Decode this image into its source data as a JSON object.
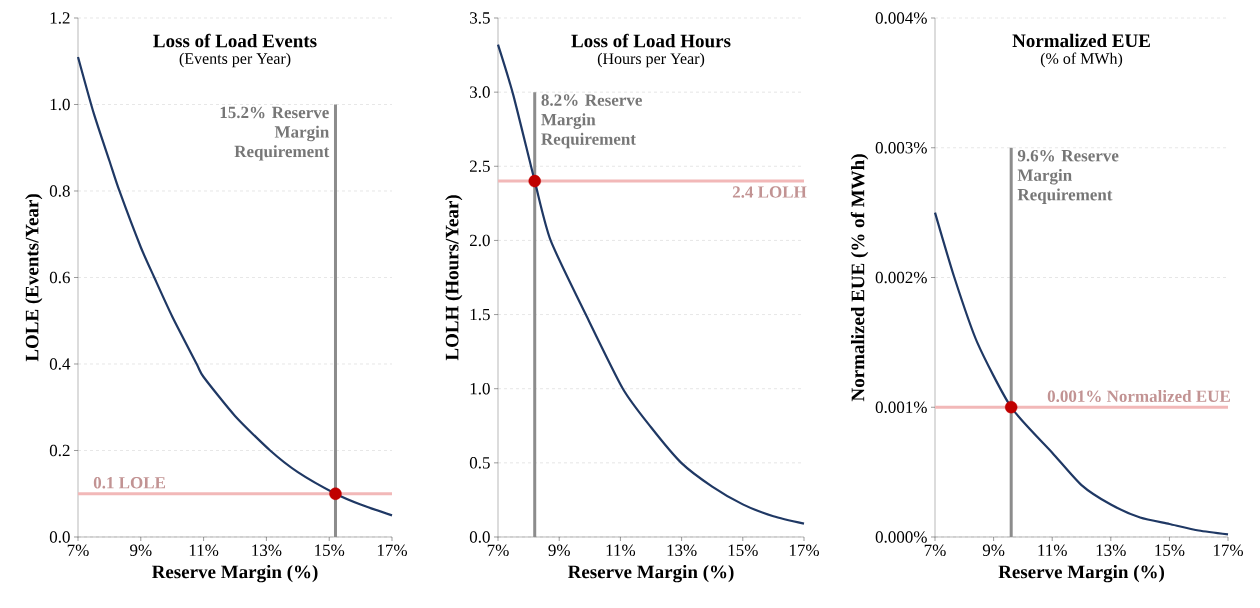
{
  "chart_data": [
    {
      "type": "line",
      "title": "Loss of Load Events",
      "subtitle": "(Events per Year)",
      "xlabel": "Reserve Margin (%)",
      "ylabel": "LOLE (Events/Year)",
      "xlim": [
        7,
        17
      ],
      "xticks": [
        {
          "value": 7,
          "label": "7%"
        },
        {
          "value": 9,
          "label": "9%"
        },
        {
          "value": 11,
          "label": "11%"
        },
        {
          "value": 13,
          "label": "13%"
        },
        {
          "value": 15,
          "label": "15%"
        },
        {
          "value": 17,
          "label": "17%"
        }
      ],
      "ylim": [
        0,
        1.2
      ],
      "yticks": [
        {
          "value": 0,
          "label": "0.0"
        },
        {
          "value": 0.2,
          "label": "0.2"
        },
        {
          "value": 0.4,
          "label": "0.4"
        },
        {
          "value": 0.6,
          "label": "0.6"
        },
        {
          "value": 0.8,
          "label": "0.8"
        },
        {
          "value": 1.0,
          "label": "1.0"
        },
        {
          "value": 1.2,
          "label": "1.2"
        }
      ],
      "grid": "y",
      "series": [
        {
          "color": "#1f3864",
          "x": [
            7,
            7.5,
            8,
            8.32,
            9,
            9.43,
            10,
            10.78,
            11,
            12,
            13.12,
            14,
            15.2,
            16,
            17
          ],
          "values": [
            1.11,
            0.98,
            0.87,
            0.8,
            0.67,
            0.6,
            0.51,
            0.4,
            0.37,
            0.28,
            0.2,
            0.15,
            0.1,
            0.075,
            0.05
          ]
        },
        {
          "type": "scatter",
          "color": "#c00000",
          "x": [
            15.2
          ],
          "values": [
            0.1
          ]
        }
      ],
      "ref_lines": [
        {
          "axis": "x",
          "value": 15.2,
          "label": "15.2% Reserve Margin Requirement",
          "color": "#8c8c8c"
        },
        {
          "axis": "y",
          "value": 0.1,
          "label": "0.1 LOLE",
          "color": "#f2b8b8"
        }
      ]
    },
    {
      "type": "line",
      "title": "Loss of Load Hours",
      "subtitle": "(Hours per Year)",
      "xlabel": "Reserve Margin (%)",
      "ylabel": "LOLH (Hours/Year)",
      "xlim": [
        7,
        17
      ],
      "xticks": [
        {
          "value": 7,
          "label": "7%"
        },
        {
          "value": 9,
          "label": "9%"
        },
        {
          "value": 11,
          "label": "11%"
        },
        {
          "value": 13,
          "label": "13%"
        },
        {
          "value": 15,
          "label": "15%"
        },
        {
          "value": 17,
          "label": "17%"
        }
      ],
      "ylim": [
        0,
        3.5
      ],
      "yticks": [
        {
          "value": 0,
          "label": "0.0"
        },
        {
          "value": 0.5,
          "label": "0.5"
        },
        {
          "value": 1.0,
          "label": "1.0"
        },
        {
          "value": 1.5,
          "label": "1.5"
        },
        {
          "value": 2.0,
          "label": "2.0"
        },
        {
          "value": 2.5,
          "label": "2.5"
        },
        {
          "value": 3.0,
          "label": "3.0"
        },
        {
          "value": 3.5,
          "label": "3.5"
        }
      ],
      "grid": "y",
      "series": [
        {
          "color": "#1f3864",
          "x": [
            7,
            7.5,
            8.2,
            8.72,
            9.87,
            11.08,
            12,
            12.99,
            14,
            15,
            16,
            17
          ],
          "values": [
            3.32,
            2.98,
            2.4,
            2.0,
            1.5,
            1.0,
            0.74,
            0.5,
            0.34,
            0.22,
            0.14,
            0.09
          ]
        },
        {
          "type": "scatter",
          "color": "#c00000",
          "x": [
            8.2
          ],
          "values": [
            2.4
          ]
        }
      ],
      "ref_lines": [
        {
          "axis": "x",
          "value": 8.2,
          "label": "8.2% Reserve Margin Requirement",
          "color": "#8c8c8c"
        },
        {
          "axis": "y",
          "value": 2.4,
          "label": "2.4 LOLH",
          "color": "#f2b8b8"
        }
      ]
    },
    {
      "type": "line",
      "title": "Normalized EUE",
      "subtitle": "(% of MWh)",
      "xlabel": "Reserve Margin (%)",
      "ylabel": "Normalized EUE (% of MWh)",
      "xlim": [
        7,
        17
      ],
      "xticks": [
        {
          "value": 7,
          "label": "7%"
        },
        {
          "value": 9,
          "label": "9%"
        },
        {
          "value": 11,
          "label": "11%"
        },
        {
          "value": 13,
          "label": "13%"
        },
        {
          "value": 15,
          "label": "15%"
        },
        {
          "value": 17,
          "label": "17%"
        }
      ],
      "ylim": [
        0,
        0.004
      ],
      "yticks": [
        {
          "value": 0,
          "label": "0.000%"
        },
        {
          "value": 0.001,
          "label": "0.001%"
        },
        {
          "value": 0.002,
          "label": "0.002%"
        },
        {
          "value": 0.003,
          "label": "0.003%"
        },
        {
          "value": 0.004,
          "label": "0.004%"
        }
      ],
      "grid": "y",
      "series": [
        {
          "color": "#1f3864",
          "x": [
            7,
            7.66,
            8.44,
            9.6,
            11,
            12,
            13,
            14,
            15,
            16,
            17
          ],
          "values": [
            0.0025,
            0.002,
            0.0015,
            0.001,
            0.00065,
            0.0004,
            0.00025,
            0.00015,
            0.0001,
            5e-05,
            2e-05
          ]
        },
        {
          "type": "scatter",
          "color": "#c00000",
          "x": [
            9.6
          ],
          "values": [
            0.001
          ]
        }
      ],
      "ref_lines": [
        {
          "axis": "x",
          "value": 9.6,
          "label": "9.6% Reserve Margin Requirement",
          "color": "#8c8c8c"
        },
        {
          "axis": "y",
          "value": 0.001,
          "label": "0.001% Normalized EUE",
          "color": "#f2b8b8"
        }
      ]
    }
  ]
}
